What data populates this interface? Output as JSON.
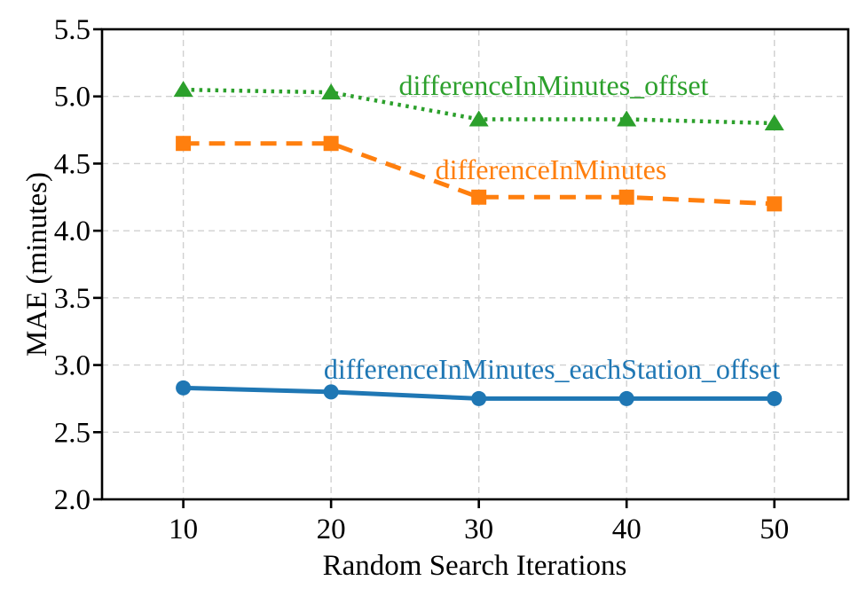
{
  "figure": {
    "background": "#ffffff",
    "spine_color": "#000000",
    "grid_color": "#d0d0d0"
  },
  "chart_data": {
    "type": "line",
    "title": "",
    "xlabel": "Random Search Iterations",
    "ylabel": "MAE (minutes)",
    "x": [
      10,
      20,
      30,
      40,
      50
    ],
    "xtick_labels": [
      "10",
      "20",
      "30",
      "40",
      "50"
    ],
    "ytick_values": [
      2.0,
      2.5,
      3.0,
      3.5,
      4.0,
      4.5,
      5.0,
      5.5
    ],
    "ytick_labels": [
      "2.0",
      "2.5",
      "3.0",
      "3.5",
      "4.0",
      "4.5",
      "5.0",
      "5.5"
    ],
    "xlim": [
      4.5,
      55.0
    ],
    "ylim": [
      2.0,
      5.5
    ],
    "grid": true,
    "legend_position": "inline-annotations",
    "series": [
      {
        "name": "differenceInMinutes_offset",
        "values": [
          5.05,
          5.03,
          4.83,
          4.83,
          4.8
        ],
        "color": "#2ca02c",
        "marker": "triangle",
        "line_style": "dotted"
      },
      {
        "name": "differenceInMinutes",
        "values": [
          4.65,
          4.65,
          4.25,
          4.25,
          4.2
        ],
        "color": "#ff7f0e",
        "marker": "square",
        "line_style": "dashed"
      },
      {
        "name": "differenceInMinutes_eachStation_offset",
        "values": [
          2.83,
          2.8,
          2.75,
          2.75,
          2.75
        ],
        "color": "#1f77b4",
        "marker": "circle",
        "line_style": "solid"
      }
    ]
  }
}
